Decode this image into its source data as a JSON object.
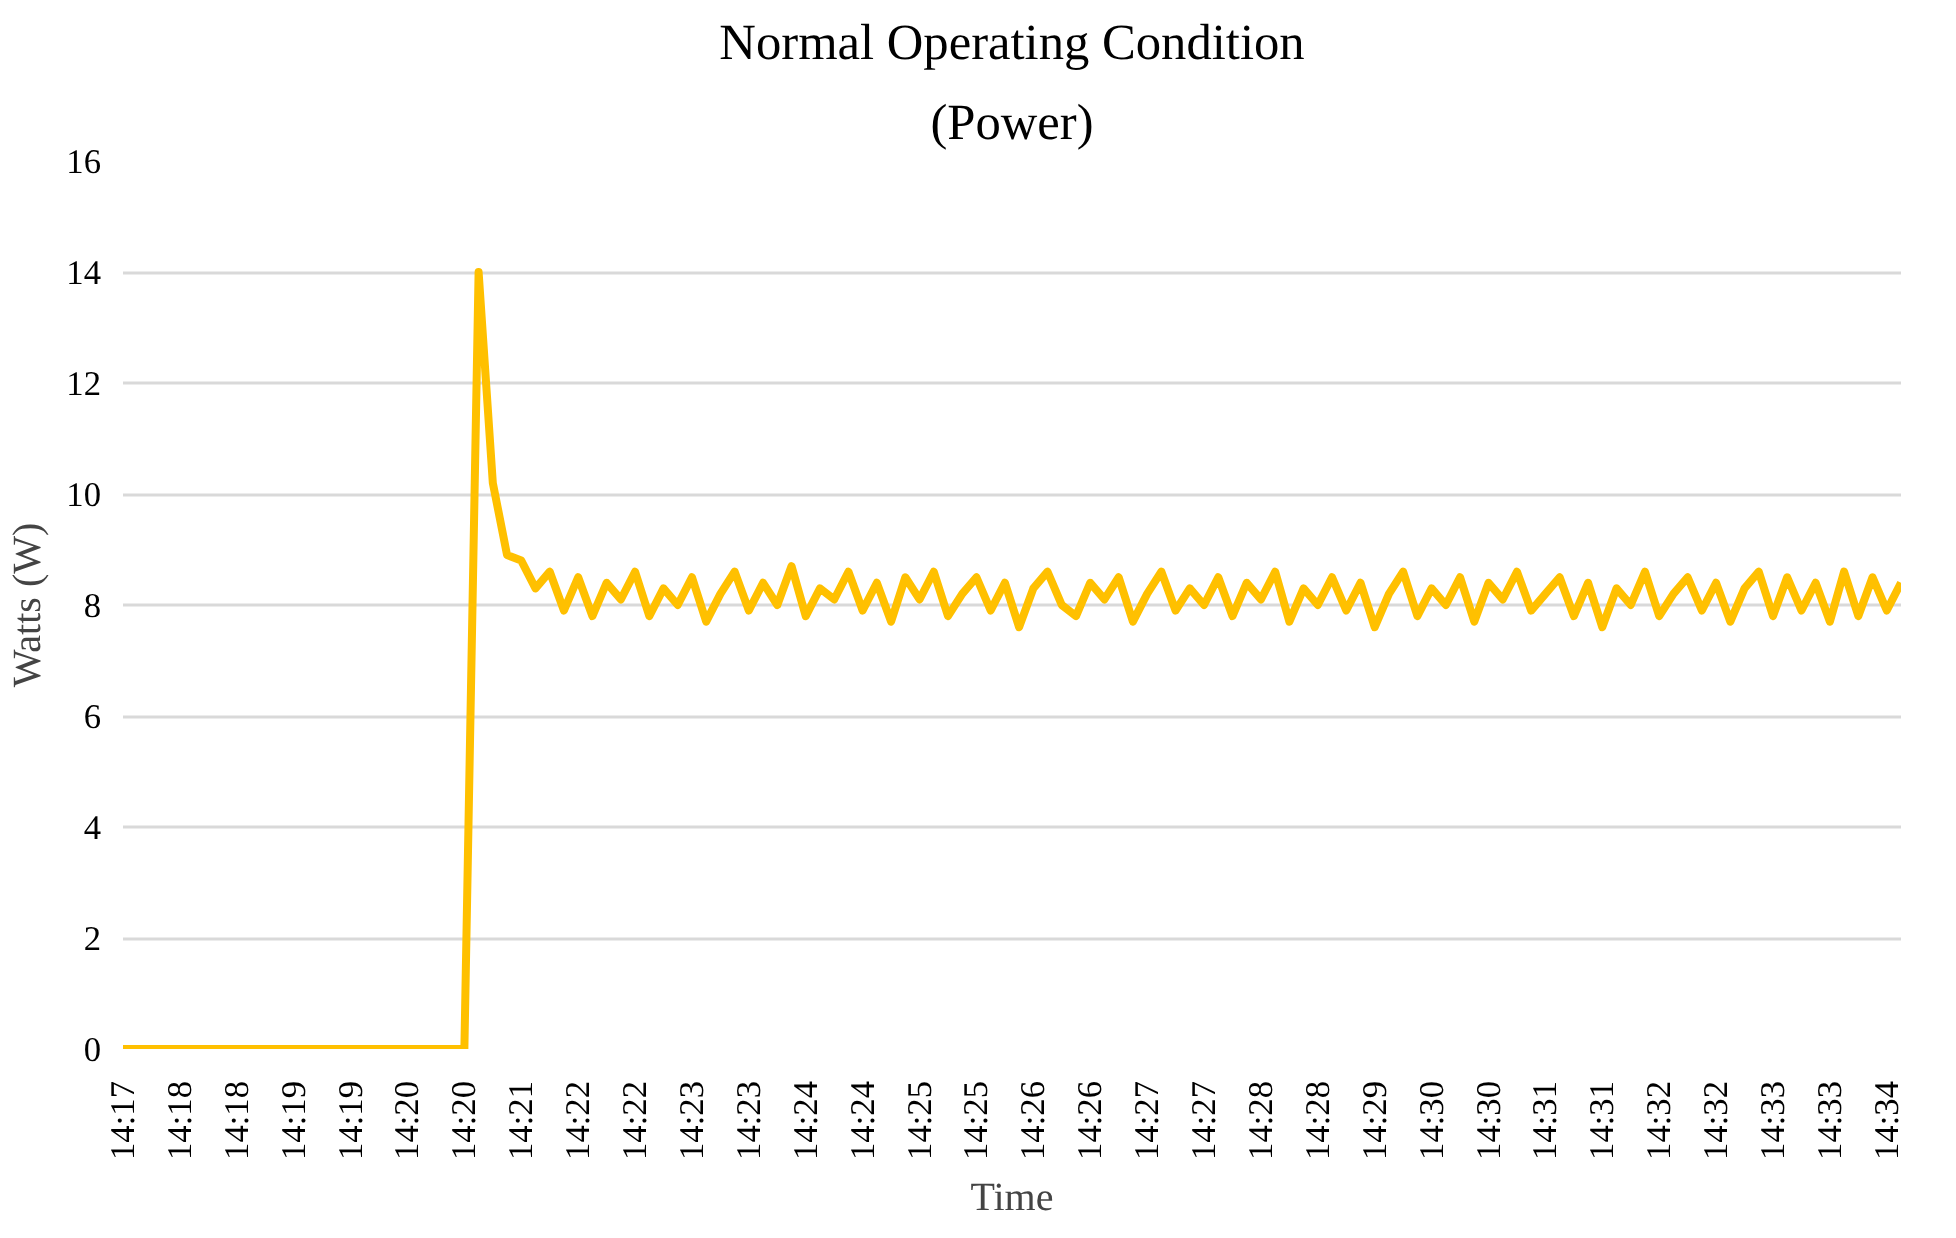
{
  "chart_data": {
    "type": "line",
    "title": "Normal Operating Condition",
    "subtitle": "(Power)",
    "xlabel": "Time",
    "ylabel": "Watts (W)",
    "categories": [
      "14:17",
      null,
      null,
      null,
      "14:18",
      null,
      null,
      null,
      "14:18",
      null,
      null,
      null,
      "14:19",
      null,
      null,
      null,
      "14:19",
      null,
      null,
      null,
      "14:20",
      null,
      null,
      null,
      "14:20",
      null,
      null,
      null,
      "14:21",
      null,
      null,
      null,
      "14:22",
      null,
      null,
      null,
      "14:22",
      null,
      null,
      null,
      "14:23",
      null,
      null,
      null,
      "14:23",
      null,
      null,
      null,
      "14:24",
      null,
      null,
      null,
      "14:24",
      null,
      null,
      null,
      "14:25",
      null,
      null,
      null,
      "14:25",
      null,
      null,
      null,
      "14:26",
      null,
      null,
      null,
      "14:26",
      null,
      null,
      null,
      "14:27",
      null,
      null,
      null,
      "14:27",
      null,
      null,
      null,
      "14:28",
      null,
      null,
      null,
      "14:28",
      null,
      null,
      null,
      "14:29",
      null,
      null,
      null,
      "14:30",
      null,
      null,
      null,
      "14:30",
      null,
      null,
      null,
      "14:31",
      null,
      null,
      null,
      "14:31",
      null,
      null,
      null,
      "14:32",
      null,
      null,
      null,
      "14:32",
      null,
      null,
      null,
      "14:33",
      null,
      null,
      null,
      "14:33",
      null,
      null,
      null,
      "14:34",
      null
    ],
    "series": [
      {
        "color": "#ffc000",
        "values": [
          0,
          0,
          0,
          0,
          0,
          0,
          0,
          0,
          0,
          0,
          0,
          0,
          0,
          0,
          0,
          0,
          0,
          0,
          0,
          0,
          0,
          0,
          0,
          0,
          0,
          14,
          10.2,
          8.9,
          8.8,
          8.3,
          8.6,
          7.9,
          8.5,
          7.8,
          8.4,
          8.1,
          8.6,
          7.8,
          8.3,
          8.0,
          8.5,
          7.7,
          8.2,
          8.6,
          7.9,
          8.4,
          8.0,
          8.7,
          7.8,
          8.3,
          8.1,
          8.6,
          7.9,
          8.4,
          7.7,
          8.5,
          8.1,
          8.6,
          7.8,
          8.2,
          8.5,
          7.9,
          8.4,
          7.6,
          8.3,
          8.6,
          8.0,
          7.8,
          8.4,
          8.1,
          8.5,
          7.7,
          8.2,
          8.6,
          7.9,
          8.3,
          8.0,
          8.5,
          7.8,
          8.4,
          8.1,
          8.6,
          7.7,
          8.3,
          8.0,
          8.5,
          7.9,
          8.4,
          7.6,
          8.2,
          8.6,
          7.8,
          8.3,
          8.0,
          8.5,
          7.7,
          8.4,
          8.1,
          8.6,
          7.9,
          8.2,
          8.5,
          7.8,
          8.4,
          7.6,
          8.3,
          8.0,
          8.6,
          7.8,
          8.2,
          8.5,
          7.9,
          8.4,
          7.7,
          8.3,
          8.6,
          7.8,
          8.5,
          7.9,
          8.4,
          7.7,
          8.6,
          7.8,
          8.5,
          7.9,
          8.4
        ]
      }
    ],
    "ylim": [
      0,
      16
    ],
    "yticks": [
      0,
      2,
      4,
      6,
      8,
      10,
      12,
      14,
      16
    ],
    "grid": "y",
    "marker": "none",
    "line_style": "solid"
  }
}
